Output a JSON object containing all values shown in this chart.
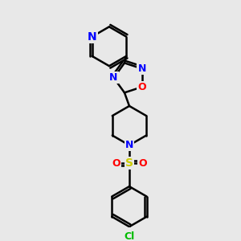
{
  "background_color": "#e8e8e8",
  "bond_color": "#000000",
  "bond_width": 1.8,
  "atom_colors": {
    "N": "#0000ff",
    "O": "#ff0000",
    "S": "#cccc00",
    "Cl": "#00bb00",
    "C": "#000000"
  },
  "font_size": 9
}
